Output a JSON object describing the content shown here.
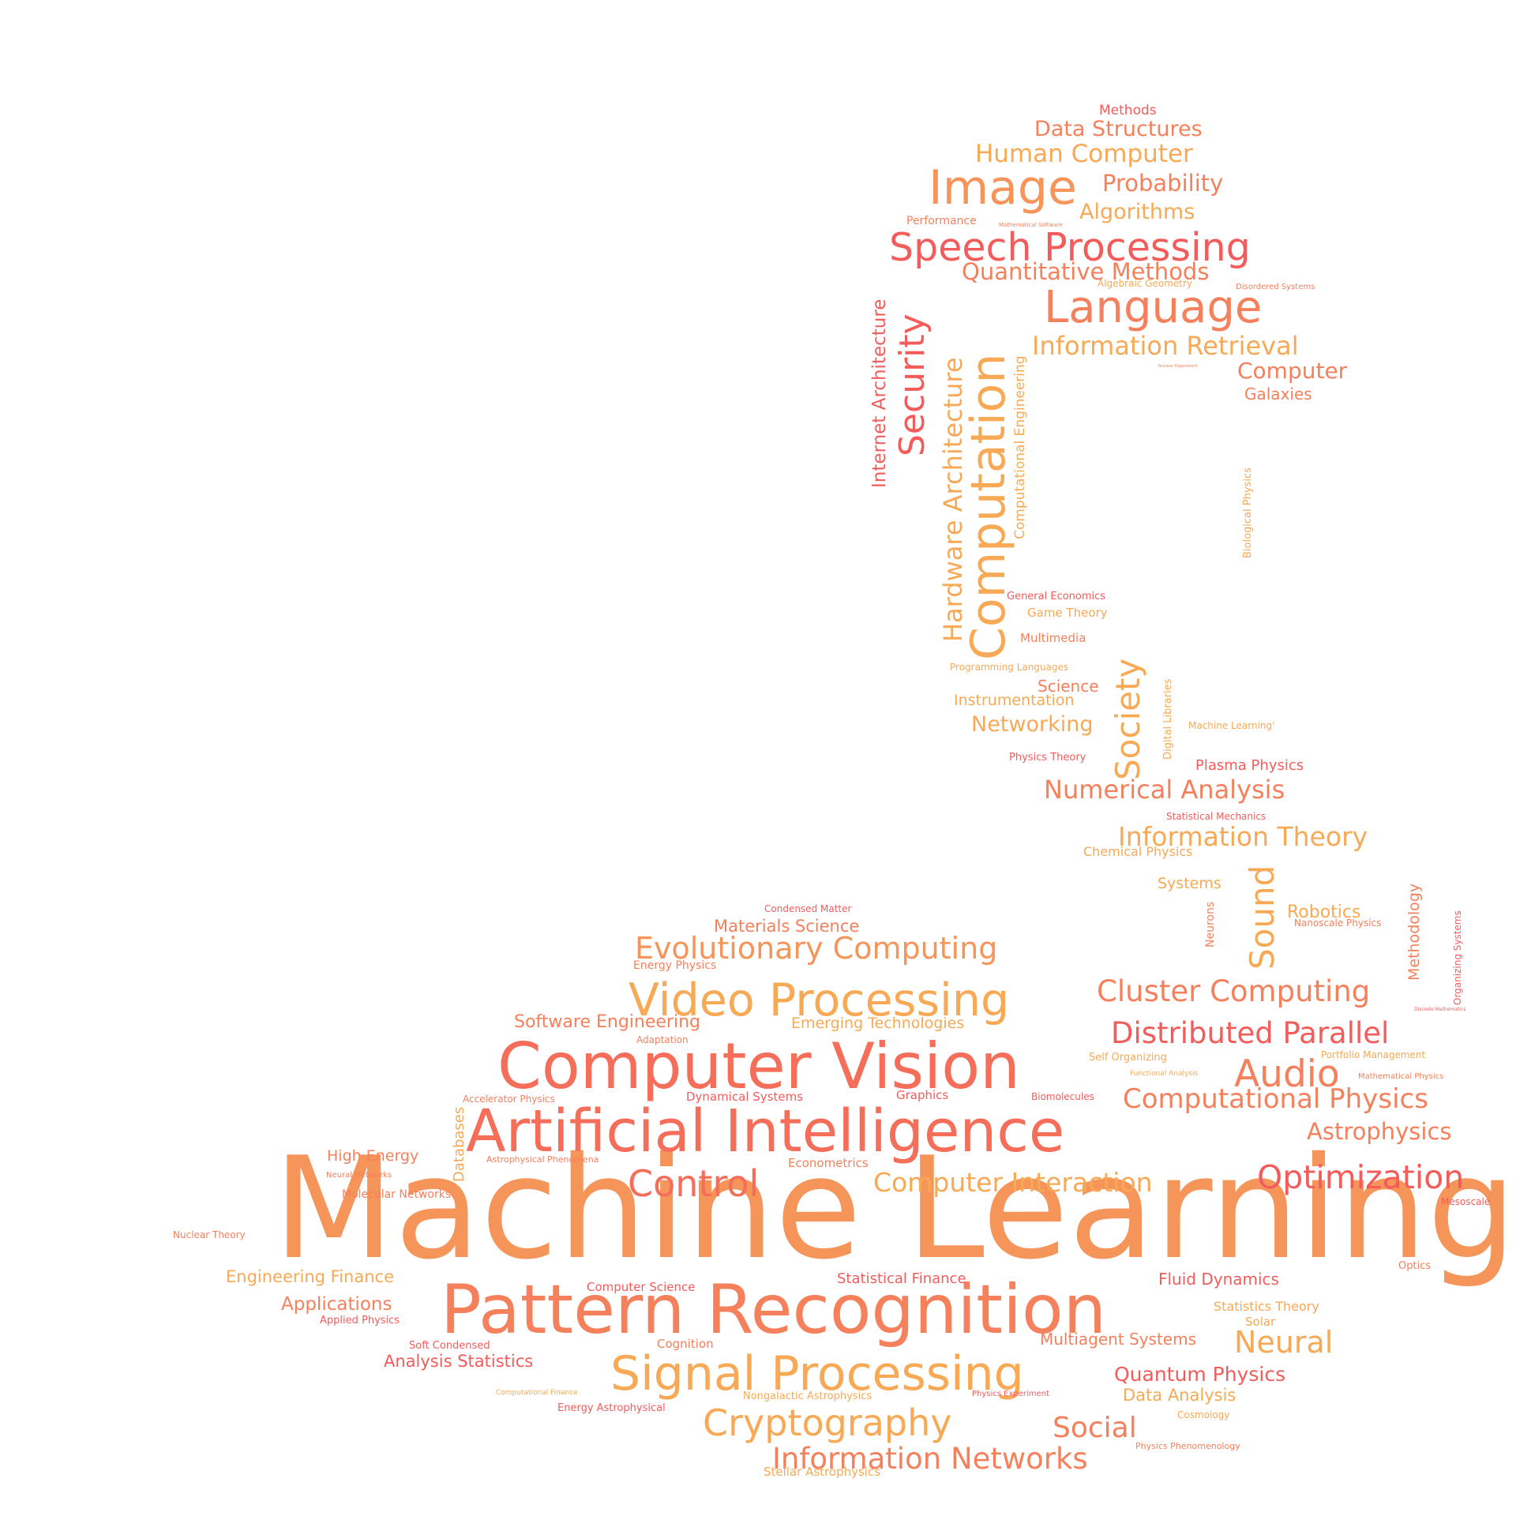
{
  "palette": {
    "red": "#f45b5b",
    "coral": "#f56e5a",
    "salmon": "#f5805c",
    "orange": "#f6955a",
    "amber": "#f7a955"
  },
  "words": [
    {
      "text": "Machine Learning",
      "color": "orange"
    },
    {
      "text": "Pattern Recognition",
      "color": "salmon"
    },
    {
      "text": "Artificial Intelligence",
      "color": "coral"
    },
    {
      "text": "Computer Vision",
      "color": "coral"
    },
    {
      "text": "Signal Processing",
      "color": "amber"
    },
    {
      "text": "Video Processing",
      "color": "amber"
    },
    {
      "text": "Computation",
      "color": "amber"
    },
    {
      "text": "Cryptography",
      "color": "amber"
    },
    {
      "text": "Speech Processing",
      "color": "red"
    },
    {
      "text": "Image",
      "color": "orange"
    },
    {
      "text": "Language",
      "color": "salmon"
    },
    {
      "text": "Evolutionary Computing",
      "color": "orange"
    },
    {
      "text": "Control",
      "color": "coral"
    },
    {
      "text": "Optimization",
      "color": "red"
    },
    {
      "text": "Information Networks",
      "color": "salmon"
    },
    {
      "text": "Security",
      "color": "red"
    },
    {
      "text": "Society",
      "color": "amber"
    },
    {
      "text": "Sound",
      "color": "amber"
    },
    {
      "text": "Audio",
      "color": "salmon"
    },
    {
      "text": "Cluster Computing",
      "color": "salmon"
    },
    {
      "text": "Distributed Parallel",
      "color": "red"
    },
    {
      "text": "Computational Physics",
      "color": "salmon"
    },
    {
      "text": "Computer Interaction",
      "color": "amber"
    },
    {
      "text": "Neural",
      "color": "amber"
    },
    {
      "text": "Social",
      "color": "salmon"
    },
    {
      "text": "Hardware Architecture",
      "color": "amber"
    },
    {
      "text": "Information Retrieval",
      "color": "amber"
    },
    {
      "text": "Information Theory",
      "color": "amber"
    },
    {
      "text": "Numerical Analysis",
      "color": "salmon"
    },
    {
      "text": "Human Computer",
      "color": "amber"
    },
    {
      "text": "Quantitative Methods",
      "color": "salmon"
    },
    {
      "text": "Probability",
      "color": "salmon"
    },
    {
      "text": "Astrophysics",
      "color": "salmon"
    },
    {
      "text": "Data Structures",
      "color": "salmon"
    },
    {
      "text": "Algorithms",
      "color": "amber"
    },
    {
      "text": "Computer",
      "color": "salmon"
    },
    {
      "text": "Internet Architecture",
      "color": "red"
    },
    {
      "text": "Quantum Physics",
      "color": "red"
    },
    {
      "text": "Networking",
      "color": "amber"
    },
    {
      "text": "Applications",
      "color": "salmon"
    },
    {
      "text": "Robotics",
      "color": "amber"
    },
    {
      "text": "Materials Science",
      "color": "salmon"
    },
    {
      "text": "Analysis Statistics",
      "color": "red"
    },
    {
      "text": "Software Engineering",
      "color": "salmon"
    },
    {
      "text": "Engineering Finance",
      "color": "amber"
    },
    {
      "text": "Data Analysis",
      "color": "amber"
    },
    {
      "text": "Fluid Dynamics",
      "color": "red"
    },
    {
      "text": "Multiagent Systems",
      "color": "salmon"
    },
    {
      "text": "Galaxies",
      "color": "salmon"
    },
    {
      "text": "Emerging Technologies",
      "color": "amber"
    },
    {
      "text": "High Energy",
      "color": "salmon"
    },
    {
      "text": "Statistical Finance",
      "color": "red"
    },
    {
      "text": "Science",
      "color": "salmon"
    },
    {
      "text": "Instrumentation",
      "color": "amber"
    },
    {
      "text": "Methodology",
      "color": "salmon"
    },
    {
      "text": "Systems",
      "color": "amber"
    },
    {
      "text": "Plasma Physics",
      "color": "red"
    },
    {
      "text": "Computational Engineering",
      "color": "amber"
    },
    {
      "text": "Databases",
      "color": "amber"
    },
    {
      "text": "Computer Science",
      "color": "red"
    },
    {
      "text": "Dynamical Systems",
      "color": "red"
    },
    {
      "text": "Stellar Astrophysics",
      "color": "amber"
    },
    {
      "text": "Statistics Theory",
      "color": "amber"
    },
    {
      "text": "Methods",
      "color": "red"
    },
    {
      "text": "Cognition",
      "color": "salmon"
    },
    {
      "text": "Graphics",
      "color": "red"
    },
    {
      "text": "Econometrics",
      "color": "salmon"
    },
    {
      "text": "Chemical Physics",
      "color": "amber"
    },
    {
      "text": "Neurons",
      "color": "salmon"
    },
    {
      "text": "Game Theory",
      "color": "amber"
    },
    {
      "text": "Multimedia",
      "color": "salmon"
    },
    {
      "text": "Molecular Networks",
      "color": "salmon"
    },
    {
      "text": "Solar",
      "color": "amber"
    },
    {
      "text": "Performance",
      "color": "salmon"
    },
    {
      "text": "Organizing Systems",
      "color": "red"
    },
    {
      "text": "Digital Libraries",
      "color": "amber"
    },
    {
      "text": "Energy Astrophysical",
      "color": "red"
    },
    {
      "text": "Applied Physics",
      "color": "red"
    },
    {
      "text": "Soft Condensed",
      "color": "red"
    },
    {
      "text": "Nongalactic Astrophysics",
      "color": "amber"
    },
    {
      "text": "Biological Physics",
      "color": "amber"
    },
    {
      "text": "Physics Theory",
      "color": "red"
    },
    {
      "text": "Nuclear Theory",
      "color": "salmon"
    },
    {
      "text": "Optics",
      "color": "salmon"
    },
    {
      "text": "Mesoscale",
      "color": "red"
    },
    {
      "text": "Self Organizing",
      "color": "amber"
    },
    {
      "text": "Accelerator Physics",
      "color": "salmon"
    },
    {
      "text": "Energy Physics",
      "color": "salmon"
    },
    {
      "text": "General Economics",
      "color": "red"
    },
    {
      "text": "Condensed Matter",
      "color": "red"
    },
    {
      "text": "Adaptation",
      "color": "salmon"
    },
    {
      "text": "Programming Languages",
      "color": "amber"
    },
    {
      "text": "Statistical Mechanics",
      "color": "red"
    },
    {
      "text": "Portfolio Management",
      "color": "amber"
    },
    {
      "text": "Biomolecules",
      "color": "red"
    },
    {
      "text": "Algebraic Geometry",
      "color": "amber"
    },
    {
      "text": "Machine Learning'",
      "color": "amber"
    },
    {
      "text": "Cosmology",
      "color": "amber"
    },
    {
      "text": "Physics Phenomenology",
      "color": "salmon"
    },
    {
      "text": "Physics Experiment",
      "color": "red"
    },
    {
      "text": "Mathematical Physics",
      "color": "salmon"
    },
    {
      "text": "Nanoscale Physics",
      "color": "salmon"
    },
    {
      "text": "Astrophysical Phenomena",
      "color": "salmon"
    },
    {
      "text": "Neural Networks",
      "color": "salmon"
    },
    {
      "text": "Disordered Systems",
      "color": "salmon"
    },
    {
      "text": "Functional Analysis",
      "color": "amber"
    },
    {
      "text": "Computational Finance",
      "color": "amber"
    },
    {
      "text": "Mathematical Software",
      "color": "salmon"
    },
    {
      "text": "Discrete Mathematics",
      "color": "red"
    },
    {
      "text": "Nuclear Experiment",
      "color": "salmon"
    }
  ]
}
